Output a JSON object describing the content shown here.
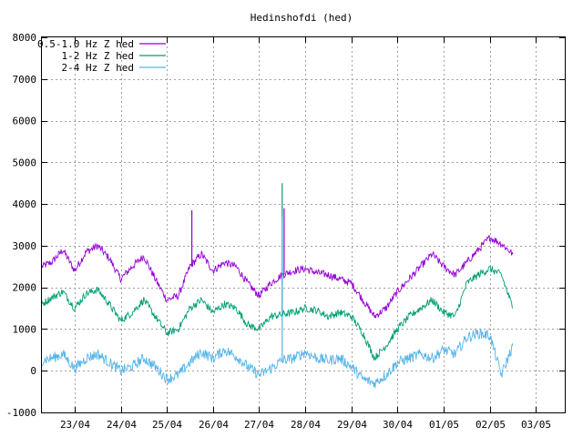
{
  "chart_data": {
    "type": "line",
    "title": "Hedinshofdi (hed)",
    "xlabel": "",
    "ylabel": "",
    "ylim": [
      -1000,
      8000
    ],
    "yticks": [
      -1000,
      0,
      1000,
      2000,
      3000,
      4000,
      5000,
      6000,
      7000,
      8000
    ],
    "xlim": [
      "2024-04-22 07:00",
      "2024-05-03 15:00"
    ],
    "xticks": [
      {
        "label": "23/04",
        "x": "2024-04-23 00:00"
      },
      {
        "label": "24/04",
        "x": "2024-04-24 00:00"
      },
      {
        "label": "25/04",
        "x": "2024-04-25 00:00"
      },
      {
        "label": "26/04",
        "x": "2024-04-26 00:00"
      },
      {
        "label": "27/04",
        "x": "2024-04-27 00:00"
      },
      {
        "label": "28/04",
        "x": "2024-04-28 00:00"
      },
      {
        "label": "29/04",
        "x": "2024-04-29 00:00"
      },
      {
        "label": "30/04",
        "x": "2024-04-30 00:00"
      },
      {
        "label": "01/05",
        "x": "2024-05-01 00:00"
      },
      {
        "label": "02/05",
        "x": "2024-05-02 00:00"
      },
      {
        "label": "03/05",
        "x": "2024-05-03 00:00"
      }
    ],
    "grid": true,
    "legend_position": "top-left",
    "series": [
      {
        "name": "0.5-1.0 Hz Z hed",
        "color": "#9400d3",
        "x": [
          "2024-04-22 07:00",
          "2024-04-22 12:00",
          "2024-04-22 18:00",
          "2024-04-23 00:00",
          "2024-04-23 06:00",
          "2024-04-23 12:00",
          "2024-04-23 18:00",
          "2024-04-24 00:00",
          "2024-04-24 06:00",
          "2024-04-24 12:00",
          "2024-04-24 18:00",
          "2024-04-25 00:00",
          "2024-04-25 06:00",
          "2024-04-25 12:00",
          "2024-04-25 18:00",
          "2024-04-26 00:00",
          "2024-04-26 06:00",
          "2024-04-26 12:00",
          "2024-04-26 18:00",
          "2024-04-27 00:00",
          "2024-04-27 06:00",
          "2024-04-27 12:00",
          "2024-04-27 18:00",
          "2024-04-28 00:00",
          "2024-04-28 06:00",
          "2024-04-28 12:00",
          "2024-04-28 18:00",
          "2024-04-29 00:00",
          "2024-04-29 06:00",
          "2024-04-29 12:00",
          "2024-04-29 18:00",
          "2024-04-30 00:00",
          "2024-04-30 06:00",
          "2024-04-30 12:00",
          "2024-04-30 18:00",
          "2024-05-01 00:00",
          "2024-05-01 06:00",
          "2024-05-01 12:00",
          "2024-05-01 18:00",
          "2024-05-02 00:00",
          "2024-05-02 06:00",
          "2024-05-02 12:00"
        ],
        "values": [
          2500,
          2600,
          2900,
          2400,
          2850,
          3000,
          2700,
          2200,
          2500,
          2750,
          2200,
          1700,
          1800,
          2500,
          2800,
          2400,
          2600,
          2500,
          2100,
          1800,
          2100,
          2300,
          2400,
          2450,
          2350,
          2300,
          2200,
          2100,
          1700,
          1300,
          1500,
          1900,
          2200,
          2500,
          2800,
          2500,
          2300,
          2600,
          2900,
          3200,
          3050,
          2800
        ],
        "spikes": [
          {
            "x": "2024-04-25 13:00",
            "y": 3850
          },
          {
            "x": "2024-04-27 13:00",
            "y": 3900
          }
        ]
      },
      {
        "name": "1-2 Hz Z hed",
        "color": "#009e73",
        "x": [
          "2024-04-22 07:00",
          "2024-04-22 12:00",
          "2024-04-22 18:00",
          "2024-04-23 00:00",
          "2024-04-23 06:00",
          "2024-04-23 12:00",
          "2024-04-23 18:00",
          "2024-04-24 00:00",
          "2024-04-24 06:00",
          "2024-04-24 12:00",
          "2024-04-24 18:00",
          "2024-04-25 00:00",
          "2024-04-25 06:00",
          "2024-04-25 12:00",
          "2024-04-25 18:00",
          "2024-04-26 00:00",
          "2024-04-26 06:00",
          "2024-04-26 12:00",
          "2024-04-26 18:00",
          "2024-04-27 00:00",
          "2024-04-27 06:00",
          "2024-04-27 12:00",
          "2024-04-27 18:00",
          "2024-04-28 00:00",
          "2024-04-28 06:00",
          "2024-04-28 12:00",
          "2024-04-28 18:00",
          "2024-04-29 00:00",
          "2024-04-29 06:00",
          "2024-04-29 12:00",
          "2024-04-29 18:00",
          "2024-04-30 00:00",
          "2024-04-30 06:00",
          "2024-04-30 12:00",
          "2024-04-30 18:00",
          "2024-05-01 00:00",
          "2024-05-01 06:00",
          "2024-05-01 12:00",
          "2024-05-01 18:00",
          "2024-05-02 00:00",
          "2024-05-02 06:00",
          "2024-05-02 12:00"
        ],
        "values": [
          1600,
          1750,
          1900,
          1500,
          1850,
          1950,
          1600,
          1200,
          1400,
          1700,
          1300,
          900,
          1000,
          1500,
          1700,
          1400,
          1600,
          1500,
          1100,
          1000,
          1300,
          1350,
          1400,
          1500,
          1450,
          1300,
          1400,
          1300,
          900,
          300,
          600,
          1000,
          1300,
          1500,
          1700,
          1400,
          1300,
          2100,
          2300,
          2450,
          2300,
          1500
        ],
        "spikes": [
          {
            "x": "2024-04-27 12:00",
            "y": 4500
          }
        ]
      },
      {
        "name": "2-4 Hz Z hed",
        "color": "#56b4e9",
        "x": [
          "2024-04-22 07:00",
          "2024-04-22 12:00",
          "2024-04-22 18:00",
          "2024-04-23 00:00",
          "2024-04-23 06:00",
          "2024-04-23 12:00",
          "2024-04-23 18:00",
          "2024-04-24 00:00",
          "2024-04-24 06:00",
          "2024-04-24 12:00",
          "2024-04-24 18:00",
          "2024-04-25 00:00",
          "2024-04-25 06:00",
          "2024-04-25 12:00",
          "2024-04-25 18:00",
          "2024-04-26 00:00",
          "2024-04-26 06:00",
          "2024-04-26 12:00",
          "2024-04-26 18:00",
          "2024-04-27 00:00",
          "2024-04-27 06:00",
          "2024-04-27 12:00",
          "2024-04-27 18:00",
          "2024-04-28 00:00",
          "2024-04-28 06:00",
          "2024-04-28 12:00",
          "2024-04-28 18:00",
          "2024-04-29 00:00",
          "2024-04-29 06:00",
          "2024-04-29 12:00",
          "2024-04-29 18:00",
          "2024-04-30 00:00",
          "2024-04-30 06:00",
          "2024-04-30 12:00",
          "2024-04-30 18:00",
          "2024-05-01 00:00",
          "2024-05-01 06:00",
          "2024-05-01 12:00",
          "2024-05-01 18:00",
          "2024-05-02 00:00",
          "2024-05-02 06:00",
          "2024-05-02 12:00"
        ],
        "values": [
          250,
          300,
          400,
          50,
          300,
          400,
          200,
          0,
          100,
          300,
          100,
          -200,
          -100,
          200,
          450,
          300,
          500,
          350,
          100,
          -100,
          50,
          250,
          300,
          450,
          300,
          250,
          300,
          100,
          -200,
          -300,
          -100,
          200,
          300,
          400,
          300,
          500,
          400,
          800,
          900,
          850,
          -100,
          600
        ],
        "spikes": [
          {
            "x": "2024-04-27 12:00",
            "y": 3700
          }
        ]
      }
    ]
  }
}
